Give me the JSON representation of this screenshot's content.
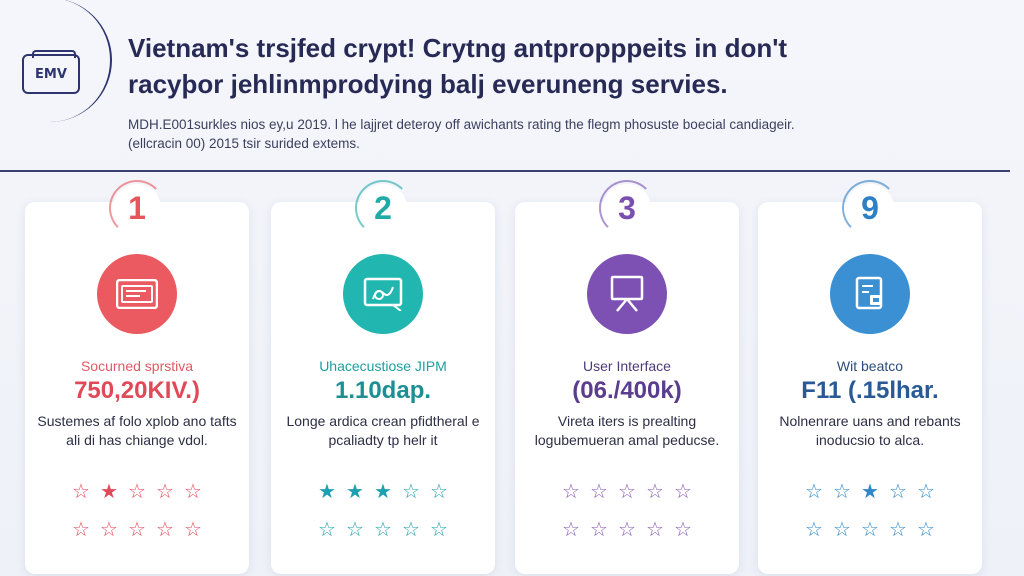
{
  "header": {
    "logo_text": "EMV",
    "title": "Vietnam's trsjfed crypt! Crytng antpropppeits in don't racyþor jehlinmprodying balj everuneng servies.",
    "subtitle": "MDH.E001surkles nios ey,u 2019. l he lajjret deteroy off awichants rating the flegm phosuste boecial candiageir. (ellcracin 00) 2015 tsir surided extems."
  },
  "colors": {
    "card1": "#e8545c",
    "card2": "#23b4b0",
    "card3": "#7a4fb0",
    "card4": "#3a8fd0",
    "divider": "#3a4070"
  },
  "cards": [
    {
      "number": "1",
      "icon": "credit-card-icon",
      "label": "Socurned sprstiva",
      "value": "750,20KIV.)",
      "description": "Sustemes af folo xplob ano tafts ali di has chiange vdol.",
      "stars_row1": [
        "☆",
        "★",
        "☆",
        "☆",
        "☆"
      ],
      "stars_row2": [
        "☆",
        "☆",
        "☆",
        "☆",
        "☆"
      ]
    },
    {
      "number": "2",
      "icon": "document-chart-icon",
      "label": "Uhacecustiose JIPM",
      "value": "1.10dap.",
      "description": "Longe ardica crean pfidtheral e pcaliadty tp helr it",
      "stars_row1": [
        "★",
        "★",
        "★",
        "☆",
        "☆"
      ],
      "stars_row2": [
        "☆",
        "☆",
        "☆",
        "☆",
        "☆"
      ]
    },
    {
      "number": "3",
      "icon": "presentation-board-icon",
      "label": "User Interface",
      "value": "(06./400k)",
      "description": "Vireta iters is prealting logubemueran amal peducse.",
      "stars_row1": [
        "☆",
        "☆",
        "☆",
        "☆",
        "☆"
      ],
      "stars_row2": [
        "☆",
        "☆",
        "☆",
        "☆",
        "☆"
      ]
    },
    {
      "number": "9",
      "icon": "document-lock-icon",
      "label": "Wit beatco",
      "value": "F11 (.15lhar.",
      "description": "Nolnenrare uans and rebants inoducsio to alca.",
      "stars_row1": [
        "☆",
        "☆",
        "★",
        "☆",
        "☆"
      ],
      "stars_row2": [
        "☆",
        "☆",
        "☆",
        "☆",
        "☆"
      ]
    }
  ]
}
